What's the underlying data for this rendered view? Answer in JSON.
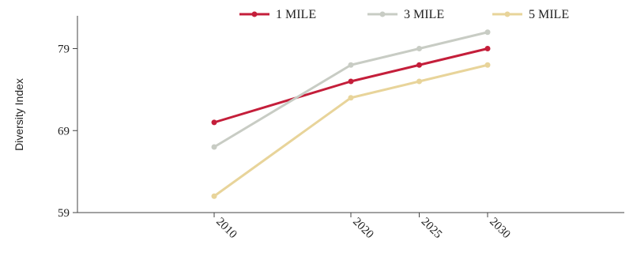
{
  "chart_data": {
    "type": "line",
    "ylabel": "Diversity Index",
    "xlabel": "",
    "x": [
      2010,
      2020,
      2025,
      2030
    ],
    "x_tick_labels": [
      "2010",
      "2020",
      "2025",
      "2030"
    ],
    "ylim": [
      59,
      83
    ],
    "xlim": [
      2000,
      2040
    ],
    "y_ticks": [
      59,
      69,
      79
    ],
    "y_tick_labels": [
      "59",
      "69",
      "79"
    ],
    "grid": false,
    "legend_position": "top",
    "series": [
      {
        "name": "1 MILE",
        "color": "#c41e3a",
        "values": [
          70,
          75,
          77,
          79
        ]
      },
      {
        "name": "3 MILE",
        "color": "#c8ccc4",
        "values": [
          67,
          77,
          79,
          81
        ]
      },
      {
        "name": "5 MILE",
        "color": "#e8d49a",
        "values": [
          61,
          73,
          75,
          77
        ]
      }
    ]
  }
}
